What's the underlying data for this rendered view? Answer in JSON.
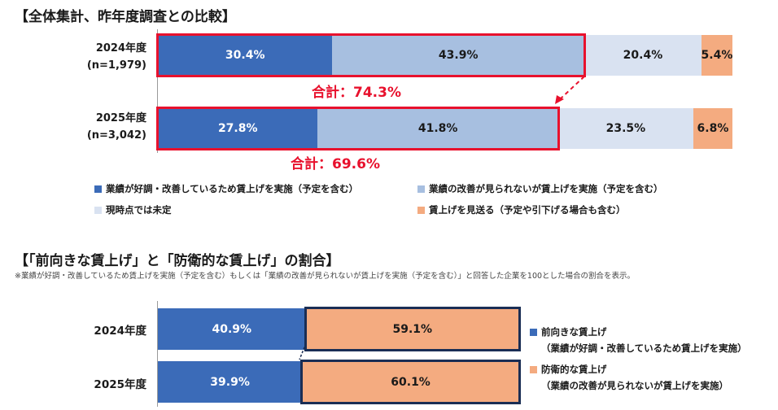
{
  "section1": {
    "title": "【全体集計、昨年度調査との比較】"
  },
  "section2": {
    "title": "【「前向きな賃上げ」と「防衛的な賃上げ」の割合】",
    "note": "※業績が好調・改善しているため賃上げを実施（予定を含む）もしくは「業績の改善が見られないが賃上げを実施（予定を含む）」と回答した企業を100とした場合の割合を表示。"
  },
  "chart_data": [
    {
      "type": "bar",
      "orientation": "horizontal",
      "stacked": true,
      "percent": true,
      "title": "【全体集計、昨年度調査との比較】",
      "categories": [
        {
          "year": "2024年度",
          "n": "(n=1,979)"
        },
        {
          "year": "2025年度",
          "n": "(n=3,042)"
        }
      ],
      "series": [
        {
          "name": "業績が好調・改善しているため賃上げを実施（予定を含む）",
          "color": "#3b6bb8",
          "values": [
            30.4,
            27.8
          ],
          "labels": [
            "30.4%",
            "27.8%"
          ]
        },
        {
          "name": "業績の改善が見られないが賃上げを実施（予定を含む）",
          "color": "#a7bfe0",
          "values": [
            43.9,
            41.8
          ],
          "labels": [
            "43.9%",
            "41.8%"
          ]
        },
        {
          "name": "現時点では未定",
          "color": "#d9e2f1",
          "values": [
            20.4,
            23.5
          ],
          "labels": [
            "20.4%",
            "23.5%"
          ]
        },
        {
          "name": "賃上げを見送る（予定や引下げる場合も含む）",
          "color": "#f4ab80",
          "values": [
            5.4,
            6.8
          ],
          "labels": [
            "5.4%",
            "6.8%"
          ]
        }
      ],
      "totals": [
        "合計：74.3%",
        "合計：69.6%"
      ],
      "highlight_color": "#e8112d",
      "legend_position": "bottom"
    },
    {
      "type": "bar",
      "orientation": "horizontal",
      "stacked": true,
      "percent": true,
      "title": "【「前向きな賃上げ」と「防衛的な賃上げ」の割合】",
      "categories": [
        "2024年度",
        "2025年度"
      ],
      "series": [
        {
          "name": "前向きな賃上げ",
          "sub": "（業績が好調・改善しているため賃上げを実施）",
          "color": "#3b6bb8",
          "values": [
            40.9,
            39.9
          ],
          "labels": [
            "40.9%",
            "39.9%"
          ]
        },
        {
          "name": "防衛的な賃上げ",
          "sub": "（業績の改善が見られないが賃上げを実施）",
          "color": "#f4ab80",
          "values": [
            59.1,
            60.1
          ],
          "labels": [
            "59.1%",
            "60.1%"
          ]
        }
      ],
      "highlight_color": "#1a2e55",
      "legend_position": "right"
    }
  ]
}
